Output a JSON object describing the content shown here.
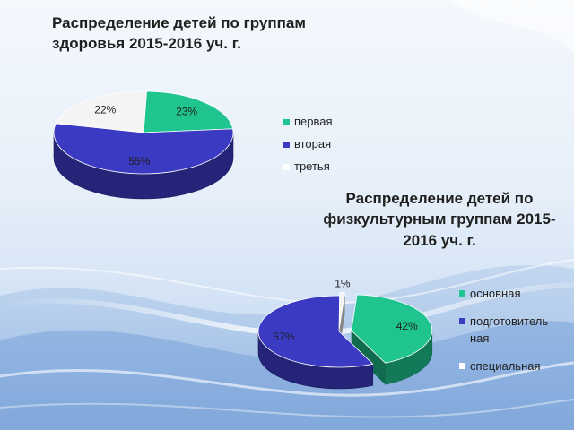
{
  "colors": {
    "teal": "#1fc48f",
    "blue": "#3a3ac2",
    "white": "#f4f4f4",
    "grey": "#7a7a7a"
  },
  "chart_data": [
    {
      "type": "pie",
      "title": "Распределение детей по группам здоровья 2015-2016 уч. г.",
      "legend_position": "right",
      "slices": [
        {
          "label": "первая",
          "value": 23,
          "value_label": "23%",
          "color": "#1fc48f"
        },
        {
          "label": "вторая",
          "value": 55,
          "value_label": "55%",
          "color": "#3a3ac2"
        },
        {
          "label": "третья",
          "value": 22,
          "value_label": "22%",
          "color": "#f4f4f4"
        }
      ]
    },
    {
      "type": "pie",
      "title": "Распределение детей по физкультурным группам 2015-2016 уч. г.",
      "legend_position": "right",
      "slices": [
        {
          "label": "основная",
          "value": 42,
          "value_label": "42%",
          "color": "#1fc48f"
        },
        {
          "label": "подготовитель ная",
          "value": 57,
          "value_label": "57%",
          "color": "#3a3ac2"
        },
        {
          "label": "специальная",
          "value": 1,
          "value_label": "1%",
          "color": "#f4f4f4"
        }
      ]
    }
  ]
}
